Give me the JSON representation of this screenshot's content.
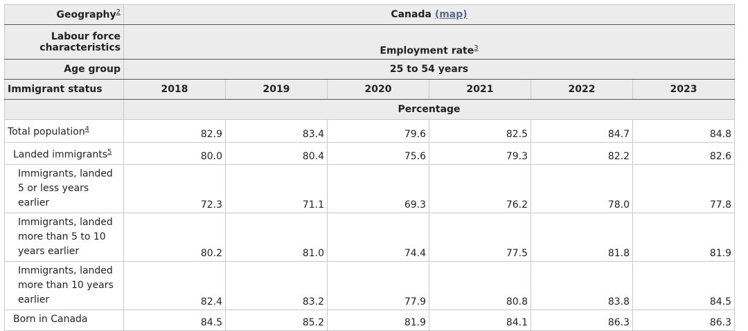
{
  "header": {
    "geography_label": "Geography",
    "geography_note": "2",
    "geography_value": "Canada",
    "map_link": "(map)",
    "labour_label": "Labour force characteristics",
    "labour_value": "Employment rate",
    "labour_note": "3",
    "age_label": "Age group",
    "age_value": "25 to 54 years",
    "status_label": "Immigrant status",
    "years": [
      "2018",
      "2019",
      "2020",
      "2021",
      "2022",
      "2023"
    ],
    "unit": "Percentage"
  },
  "rows": [
    {
      "label": "Total population",
      "note": "4",
      "values": [
        "82.9",
        "83.4",
        "79.6",
        "82.5",
        "84.7",
        "84.8"
      ]
    },
    {
      "label": "Landed immigrants",
      "note": "5",
      "values": [
        "80.0",
        "80.4",
        "75.6",
        "79.3",
        "82.2",
        "82.6"
      ]
    },
    {
      "label": "Immigrants, landed 5 or less years earlier",
      "note": "",
      "values": [
        "72.3",
        "71.1",
        "69.3",
        "76.2",
        "78.0",
        "77.8"
      ]
    },
    {
      "label": "Immigrants, landed more than 5 to 10 years earlier",
      "note": "",
      "values": [
        "80.2",
        "81.0",
        "74.4",
        "77.5",
        "81.8",
        "81.9"
      ]
    },
    {
      "label": "Immigrants, landed more than 10 years earlier",
      "note": "",
      "values": [
        "82.4",
        "83.2",
        "77.9",
        "80.8",
        "83.8",
        "84.5"
      ]
    },
    {
      "label": "Born in Canada",
      "note": "",
      "values": [
        "84.5",
        "85.2",
        "81.9",
        "84.1",
        "86.3",
        "86.3"
      ]
    }
  ]
}
